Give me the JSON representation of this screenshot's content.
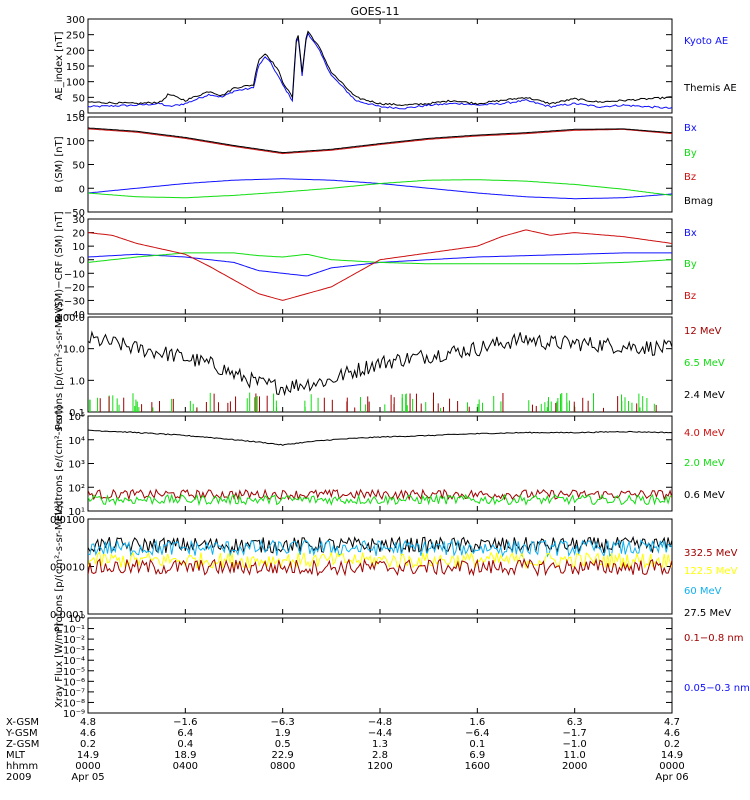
{
  "title": "GOES-11",
  "colors": {
    "black": "#000000",
    "blue": "#1010ff",
    "red": "#cc1010",
    "darkred": "#a00000",
    "green": "#10dd10",
    "cyan": "#10b0f0",
    "yellow": "#ffff00"
  },
  "chart_data": [
    {
      "type": "line",
      "ylabel": "AE_index [nT]",
      "ylim": [
        0,
        300
      ],
      "scale": "linear",
      "yticks": [
        "0",
        "50",
        "100",
        "150",
        "200",
        "250",
        "300"
      ],
      "legend": [
        "Kyoto AE",
        "Themis AE"
      ],
      "legend_colors": [
        "blue",
        "black"
      ],
      "series": [
        {
          "name": "Kyoto AE",
          "color": "blue",
          "x": [
            0,
            2,
            3,
            3.3,
            4,
            5,
            5.5,
            6,
            6.8,
            7,
            7.3,
            7.5,
            7.8,
            8,
            8.4,
            8.6,
            8.8,
            9,
            9.5,
            10,
            11,
            12,
            13,
            14,
            15,
            15.5,
            16,
            17,
            18,
            19,
            20,
            21,
            22,
            23,
            24
          ],
          "y": [
            20,
            25,
            30,
            20,
            30,
            60,
            50,
            70,
            80,
            150,
            180,
            160,
            120,
            90,
            40,
            270,
            120,
            260,
            200,
            120,
            40,
            20,
            15,
            25,
            30,
            30,
            25,
            30,
            40,
            20,
            30,
            20,
            25,
            20,
            15
          ]
        },
        {
          "name": "Themis AE",
          "color": "black",
          "x": [
            0,
            2,
            3,
            3.3,
            4,
            5,
            5.5,
            6,
            6.8,
            7,
            7.3,
            7.5,
            7.8,
            8,
            8.4,
            8.6,
            8.8,
            9,
            9.5,
            10,
            11,
            12,
            13,
            14,
            15,
            15.5,
            16,
            17,
            18,
            19,
            20,
            21,
            22,
            23,
            24
          ],
          "y": [
            35,
            30,
            35,
            60,
            40,
            70,
            55,
            80,
            90,
            170,
            190,
            170,
            140,
            100,
            50,
            280,
            130,
            265,
            210,
            130,
            50,
            30,
            25,
            30,
            40,
            35,
            30,
            40,
            50,
            30,
            45,
            35,
            40,
            45,
            50
          ]
        }
      ]
    },
    {
      "type": "line",
      "ylabel": "B (SM) [nT]",
      "ylim": [
        -50,
        150
      ],
      "scale": "linear",
      "yticks": [
        "−50",
        "0",
        "50",
        "100",
        "150"
      ],
      "legend": [
        "Bx",
        "By",
        "Bz",
        "Bmag"
      ],
      "legend_colors": [
        "blue",
        "green",
        "red",
        "black"
      ],
      "series": [
        {
          "name": "Bx",
          "color": "blue",
          "x": [
            0,
            2,
            4,
            6,
            8,
            10,
            12,
            14,
            16,
            18,
            20,
            22,
            24
          ],
          "y": [
            -10,
            0,
            10,
            17,
            20,
            17,
            10,
            0,
            -10,
            -18,
            -22,
            -20,
            -12
          ]
        },
        {
          "name": "By",
          "color": "green",
          "x": [
            0,
            2,
            4,
            6,
            8,
            10,
            12,
            14,
            16,
            18,
            20,
            22,
            24
          ],
          "y": [
            -10,
            -18,
            -20,
            -15,
            -8,
            0,
            10,
            17,
            18,
            15,
            8,
            -2,
            -15
          ]
        },
        {
          "name": "Bz",
          "color": "red",
          "x": [
            0,
            2,
            4,
            6,
            8,
            10,
            12,
            14,
            16,
            18,
            20,
            22,
            24
          ],
          "y": [
            125,
            118,
            105,
            88,
            73,
            80,
            92,
            103,
            110,
            115,
            122,
            124,
            115
          ]
        },
        {
          "name": "Bmag",
          "color": "black",
          "x": [
            0,
            2,
            4,
            6,
            8,
            10,
            12,
            14,
            16,
            18,
            20,
            22,
            24
          ],
          "y": [
            127,
            120,
            107,
            90,
            75,
            82,
            94,
            105,
            112,
            117,
            124,
            125,
            117
          ]
        }
      ]
    },
    {
      "type": "line",
      "ylabel": "B (SM)−CRF (SM) [nT]",
      "ylim": [
        -40,
        30
      ],
      "scale": "linear",
      "yticks": [
        "−40",
        "−30",
        "−20",
        "−10",
        "0",
        "10",
        "20",
        "30"
      ],
      "legend": [
        "Bx",
        "By",
        "Bz"
      ],
      "legend_colors": [
        "blue",
        "green",
        "red"
      ],
      "series": [
        {
          "name": "Bx",
          "color": "blue",
          "x": [
            0,
            2,
            4,
            6,
            7,
            8,
            9,
            10,
            12,
            14,
            16,
            18,
            20,
            22,
            24
          ],
          "y": [
            2,
            4,
            2,
            -2,
            -8,
            -10,
            -12,
            -6,
            -2,
            0,
            2,
            3,
            4,
            5,
            5
          ]
        },
        {
          "name": "By",
          "color": "green",
          "x": [
            0,
            2,
            4,
            6,
            7,
            8,
            9,
            10,
            12,
            14,
            16,
            18,
            20,
            22,
            24
          ],
          "y": [
            -2,
            2,
            5,
            5,
            3,
            2,
            4,
            0,
            -2,
            -3,
            -3,
            -3,
            -3,
            -2,
            0
          ]
        },
        {
          "name": "Bz",
          "color": "red",
          "x": [
            0,
            1,
            2,
            4,
            5,
            6,
            7,
            8,
            9,
            10,
            11,
            12,
            14,
            16,
            17,
            18,
            19,
            20,
            22,
            24
          ],
          "y": [
            20,
            18,
            12,
            4,
            -5,
            -15,
            -25,
            -30,
            -25,
            -20,
            -10,
            0,
            5,
            10,
            17,
            22,
            18,
            20,
            17,
            12
          ]
        }
      ]
    },
    {
      "type": "line",
      "ylabel": "Protons [p/(cm²-s-sr-MeV)]",
      "ylim": [
        0.1,
        100
      ],
      "scale": "log",
      "yticks": [
        "0.1",
        "1.0",
        "10.0",
        "100.0"
      ],
      "legend": [
        "12 MeV",
        "6.5 MeV",
        "2.4 MeV"
      ],
      "legend_colors": [
        "darkred",
        "green",
        "black"
      ],
      "series": [
        {
          "name": "2.4 MeV",
          "color": "black",
          "x": [
            0,
            2,
            4,
            6,
            7,
            8,
            9,
            10,
            11,
            12,
            14,
            16,
            17,
            18,
            19,
            20,
            22,
            24
          ],
          "y": [
            20,
            10,
            5,
            1.5,
            0.8,
            0.6,
            0.8,
            1.0,
            2,
            3.5,
            6,
            10,
            15,
            20,
            15,
            15,
            12,
            10
          ]
        }
      ]
    },
    {
      "type": "line",
      "ylabel": "Electrons [e/(cm²-s-sr)]",
      "ylim": [
        10,
        100000
      ],
      "scale": "log",
      "yticks": [
        "10¹",
        "10²",
        "10³",
        "10⁴",
        "10⁵"
      ],
      "legend": [
        "4.0 MeV",
        "2.0 MeV",
        "0.6 MeV"
      ],
      "legend_colors": [
        "red",
        "green",
        "black"
      ],
      "series": [
        {
          "name": "0.6 MeV",
          "color": "black",
          "x": [
            0,
            2,
            4,
            6,
            8,
            10,
            12,
            14,
            16,
            18,
            20,
            22,
            24
          ],
          "y": [
            25000,
            20000,
            15000,
            10000,
            6000,
            10000,
            13000,
            15000,
            18000,
            20000,
            20000,
            22000,
            20000
          ]
        },
        {
          "name": "4.0 MeV",
          "color": "darkred",
          "x": [
            0,
            24
          ],
          "y": [
            50,
            50
          ]
        },
        {
          "name": "2.0 MeV",
          "color": "green",
          "x": [
            0,
            24
          ],
          "y": [
            30,
            30
          ]
        }
      ]
    },
    {
      "type": "line",
      "ylabel": "Protons [p/(cm²-s-sr-MeV)]",
      "ylim": [
        0.0001,
        0.1
      ],
      "scale": "log",
      "yticks": [
        "0.0001",
        "0.0010",
        "0.0100"
      ],
      "legend": [
        "332.5 MeV",
        "122.5 MeV",
        "60 MeV",
        "27.5 MeV"
      ],
      "legend_colors": [
        "darkred",
        "yellow",
        "cyan",
        "black"
      ],
      "series": [
        {
          "name": "27.5 MeV",
          "color": "black",
          "x": [
            0,
            24
          ],
          "y": [
            0.015,
            0.015
          ]
        },
        {
          "name": "60 MeV",
          "color": "cyan",
          "x": [
            0,
            24
          ],
          "y": [
            0.012,
            0.012
          ]
        },
        {
          "name": "122.5 MeV",
          "color": "yellow",
          "x": [
            0,
            24
          ],
          "y": [
            0.005,
            0.005
          ]
        },
        {
          "name": "332.5 MeV",
          "color": "darkred",
          "x": [
            0,
            24
          ],
          "y": [
            0.003,
            0.003
          ]
        }
      ]
    },
    {
      "type": "line",
      "ylabel": "Xray Flux [W/m²]",
      "ylim": [
        1e-09,
        1
      ],
      "scale": "log",
      "yticks": [
        "10⁻⁹",
        "10⁻⁸",
        "10⁻⁷",
        "10⁻⁶",
        "10⁻⁵",
        "10⁻⁴",
        "10⁻³",
        "10⁻²",
        "10⁻¹",
        "10⁰"
      ],
      "legend": [
        "0.1−0.8 nm",
        "0.05−0.3 nm"
      ],
      "legend_colors": [
        "darkred",
        "blue"
      ],
      "series": []
    }
  ],
  "xaxis": {
    "ticks_hours": [
      0,
      4,
      8,
      12,
      16,
      20,
      24
    ],
    "row_labels": [
      "X-GSM",
      "Y-GSM",
      "Z-GSM",
      "MLT",
      "hhmm",
      "2009"
    ],
    "columns": [
      [
        "4.8",
        "4.6",
        "0.2",
        "14.9",
        "0000",
        "Apr 05"
      ],
      [
        "−1.6",
        "6.4",
        "0.4",
        "18.9",
        "0400",
        ""
      ],
      [
        "−6.3",
        "1.9",
        "0.5",
        "22.9",
        "0800",
        ""
      ],
      [
        "−4.8",
        "−4.4",
        "1.3",
        "2.8",
        "1200",
        ""
      ],
      [
        "1.6",
        "−6.4",
        "0.1",
        "6.9",
        "1600",
        ""
      ],
      [
        "6.3",
        "−1.7",
        "−1.0",
        "11.0",
        "2000",
        ""
      ],
      [
        "4.7",
        "4.6",
        "0.2",
        "14.9",
        "0000",
        "Apr 06"
      ]
    ]
  }
}
